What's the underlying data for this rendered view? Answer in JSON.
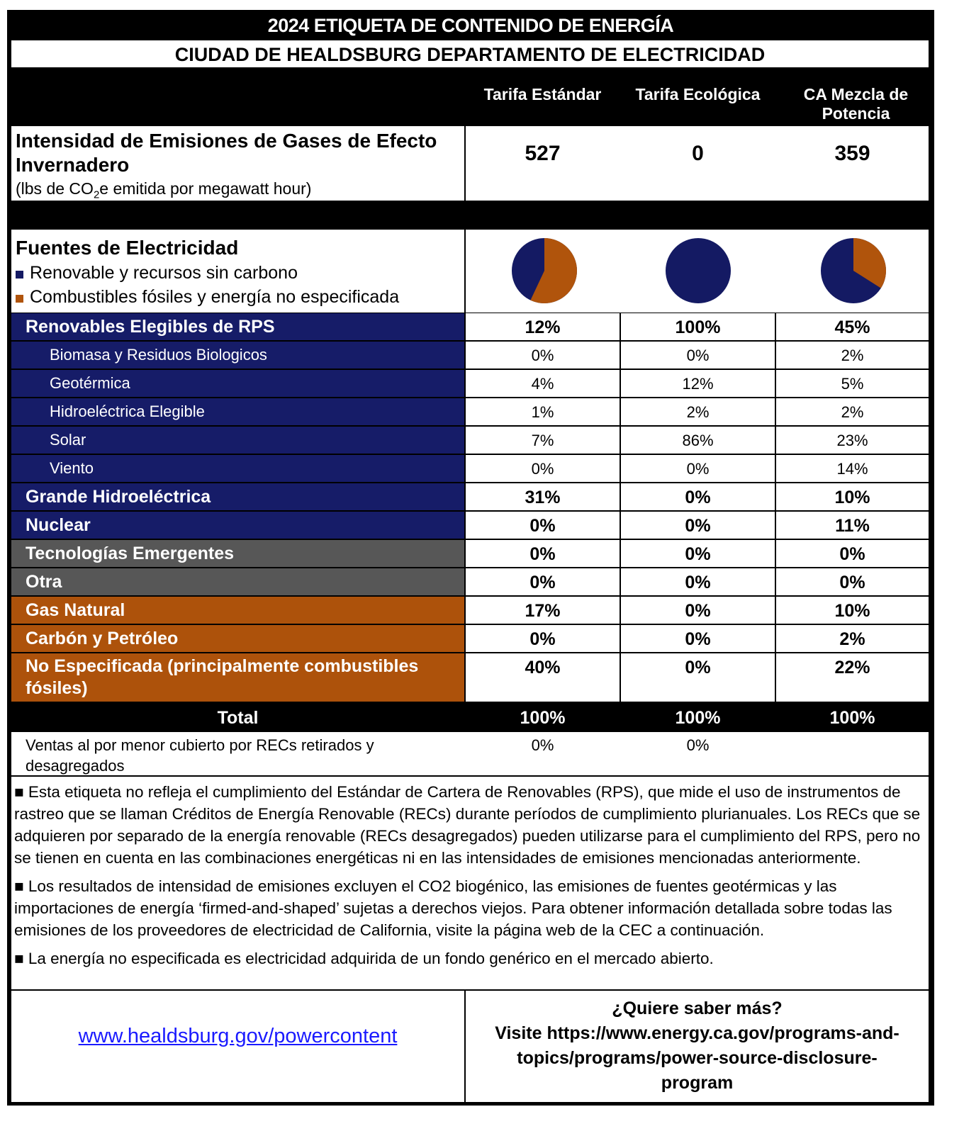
{
  "title": "2024 ETIQUETA DE CONTENIDO DE ENERGÍA",
  "subtitle": "CIUDAD DE HEALDSBURG DEPARTAMENTO DE ELECTRICIDAD",
  "columns": [
    "Tarifa Estándar",
    "Tarifa Ecológica",
    "CA Mezcla de Potencia"
  ],
  "emissions": {
    "title": "Intensidad de Emisiones de Gases de Efecto Invernadero",
    "unit_prefix": "(lbs de CO",
    "unit_sub": "2",
    "unit_suffix": "e emitida por megawatt hour)",
    "values": [
      "527",
      "0",
      "359"
    ]
  },
  "sources": {
    "title": "Fuentes de Electricidad",
    "legend": [
      {
        "label": "Renovable y recursos sin carbono",
        "color": "#141a63"
      },
      {
        "label": "Combustibles fósiles y energía no especificada",
        "color": "#b0540c"
      }
    ],
    "pies": [
      {
        "renewable_carbon_free": 43,
        "fossil_unspecified": 57
      },
      {
        "renewable_carbon_free": 100,
        "fossil_unspecified": 0
      },
      {
        "renewable_carbon_free": 66,
        "fossil_unspecified": 34
      }
    ]
  },
  "colors": {
    "renewable": "#161c68",
    "other": "#575757",
    "fossil": "#ad520b"
  },
  "rows": [
    {
      "label": "Renovables Elegibles de RPS",
      "level": "main",
      "group": "renewable",
      "values": [
        "12%",
        "100%",
        "45%"
      ]
    },
    {
      "label": "Biomasa y Residuos Biologicos",
      "level": "sub",
      "group": "renewable",
      "values": [
        "0%",
        "0%",
        "2%"
      ]
    },
    {
      "label": "Geotérmica",
      "level": "sub",
      "group": "renewable",
      "values": [
        "4%",
        "12%",
        "5%"
      ]
    },
    {
      "label": "Hidroeléctrica Elegible",
      "level": "sub",
      "group": "renewable",
      "values": [
        "1%",
        "2%",
        "2%"
      ]
    },
    {
      "label": "Solar",
      "level": "sub",
      "group": "renewable",
      "values": [
        "7%",
        "86%",
        "23%"
      ]
    },
    {
      "label": "Viento",
      "level": "sub",
      "group": "renewable",
      "values": [
        "0%",
        "0%",
        "14%"
      ]
    },
    {
      "label": "Grande Hidroeléctrica",
      "level": "main",
      "group": "renewable",
      "values": [
        "31%",
        "0%",
        "10%"
      ]
    },
    {
      "label": "Nuclear",
      "level": "main",
      "group": "renewable",
      "values": [
        "0%",
        "0%",
        "11%"
      ]
    },
    {
      "label": "Tecnologías Emergentes",
      "level": "main",
      "group": "other",
      "values": [
        "0%",
        "0%",
        "0%"
      ]
    },
    {
      "label": "Otra",
      "level": "main",
      "group": "other",
      "values": [
        "0%",
        "0%",
        "0%"
      ]
    },
    {
      "label": "Gas Natural",
      "level": "main",
      "group": "fossil",
      "values": [
        "17%",
        "0%",
        "10%"
      ]
    },
    {
      "label": "Carbón y Petróleo",
      "level": "main",
      "group": "fossil",
      "values": [
        "0%",
        "0%",
        "2%"
      ]
    },
    {
      "label": "No Especificada (principalmente combustibles fósiles)",
      "level": "main",
      "group": "fossil",
      "values": [
        "40%",
        "0%",
        "22%"
      ],
      "tall": true
    }
  ],
  "total": {
    "label": "Total",
    "values": [
      "100%",
      "100%",
      "100%"
    ]
  },
  "recs": {
    "label": "Ventas al por menor cubierto por RECs retirados y desagregados",
    "values": [
      "0%",
      "0%"
    ]
  },
  "notes": [
    "■ Esta etiqueta no refleja el cumplimiento del Estándar de Cartera de Renovables (RPS), que mide el uso de instrumentos de rastreo que se llaman Créditos de Energía Renovable (RECs) durante períodos de cumplimiento plurianuales. Los RECs que se adquieren por separado de la energía renovable (RECs desagregados) pueden utilizarse para el cumplimiento del RPS, pero no se tienen en cuenta en las combinaciones energéticas ni en las intensidades de emisiones mencionadas anteriormente.",
    "■ Los resultados de intensidad de emisiones excluyen el CO2 biogénico, las emisiones de fuentes geotérmicas y las importaciones de energía ‘firmed-and-shaped’ sujetas a derechos viejos. Para obtener información detallada sobre todas las emisiones de los proveedores de electricidad de California, visite la página web de la CEC a continuación.",
    "■ La energía no especificada es electricidad adquirida de un fondo genérico en el mercado abierto."
  ],
  "footer": {
    "link": "www.healdsburg.gov/powercontent",
    "more_title": "¿Quiere saber más?",
    "more_text": "Visite https://www.energy.ca.gov/programs-and-topics/programs/power-source-disclosure-program"
  }
}
